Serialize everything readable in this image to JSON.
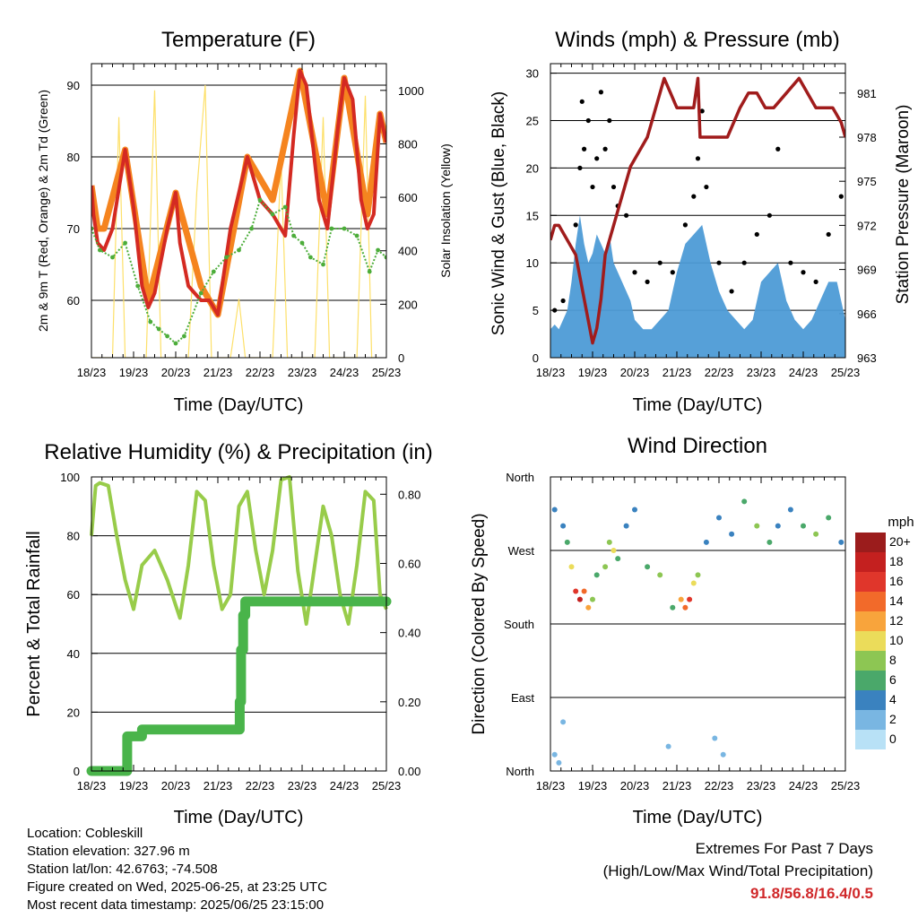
{
  "colors": {
    "temp_2m": "#d42a22",
    "temp_9m": "#f5841f",
    "dewpoint": "#4cad3a",
    "solar": "#fde06a",
    "gust": "#000000",
    "sonic_wind": "#4d9bd6",
    "pressure": "#a01c1c",
    "rh": "#98cc4a",
    "precip": "#49b44a",
    "extremes_text": "#d0282a"
  },
  "panels": {
    "temperature": {
      "title": "Temperature (F)",
      "ylabel_left": "2m & 9m T (Red, Orange) & 2m Td (Green)",
      "ylabel_right": "Solar Insolation (Yellow)",
      "xlabel": "Time (Day/UTC)"
    },
    "winds": {
      "title": "Winds (mph) & Pressure (mb)",
      "ylabel_left": "Sonic Wind & Gust (Blue, Black)",
      "ylabel_right": "Station Pressure (Maroon)",
      "xlabel": "Time (Day/UTC)"
    },
    "humidity": {
      "title": "Relative Humidity (%) & Precipitation (in)",
      "ylabel_left": "Percent & Total Rainfall",
      "xlabel": "Time (Day/UTC)"
    },
    "direction": {
      "title": "Wind Direction",
      "ylabel_left": "Direction (Colored By Speed)",
      "xlabel": "Time (Day/UTC)",
      "legend_title": "mph",
      "legend_labels": [
        "20+",
        "18",
        "16",
        "14",
        "12",
        "10",
        "8",
        "6",
        "4",
        "2",
        "0"
      ],
      "legend_colors": [
        "#9b1c1c",
        "#c4201f",
        "#e0362b",
        "#f26a2a",
        "#f8a43c",
        "#ebdc5a",
        "#8dc653",
        "#4aa86a",
        "#3a82bf",
        "#79b6e2",
        "#b8e1f6"
      ]
    }
  },
  "footer": {
    "location": "Location: Cobleskill",
    "elevation": "Station elevation: 327.96 m",
    "latlon": "Station lat/lon: 42.6763; -74.508",
    "created": "Figure created on Wed, 2025-06-25, at 23:25 UTC",
    "recent": "Most recent data timestamp: 2025/06/25 23:15:00",
    "extremes_title": "Extremes For Past 7 Days",
    "extremes_desc": "(High/Low/Max Wind/Total Precipitation)",
    "extremes_values": "91.8/56.8/16.4/0.5"
  },
  "chart_data": [
    {
      "type": "line",
      "title": "Temperature (F)",
      "xlabel": "Time (Day/UTC)",
      "ylabel": "2m & 9m T (Red, Orange) & 2m Td (Green)",
      "ylabel_right": "Solar Insolation (Yellow)",
      "x_ticks": [
        "18/23",
        "19/23",
        "20/23",
        "21/23",
        "22/23",
        "23/23",
        "24/23",
        "25/23"
      ],
      "xlim": [
        0,
        7
      ],
      "ylim": [
        52,
        93
      ],
      "y_ticks": [
        60,
        70,
        80,
        90
      ],
      "ylim_right": [
        0,
        1100
      ],
      "y_ticks_right": [
        0,
        200,
        400,
        600,
        800,
        1000
      ],
      "grid": "horizontal",
      "series": [
        {
          "name": "2m T",
          "axis": "left",
          "x": [
            0,
            0.05,
            0.15,
            0.3,
            0.5,
            0.8,
            1.0,
            1.2,
            1.35,
            1.5,
            1.8,
            2.0,
            2.1,
            2.3,
            2.6,
            2.8,
            3.0,
            3.3,
            3.7,
            4.0,
            4.3,
            4.6,
            4.8,
            4.95,
            5.1,
            5.4,
            5.6,
            5.85,
            6.0,
            6.2,
            6.4,
            6.55,
            6.7,
            6.85,
            7.0
          ],
          "y": [
            76,
            72,
            68,
            67,
            70,
            81,
            73,
            62,
            59,
            61,
            70,
            75,
            68,
            62,
            60,
            60,
            58,
            70,
            80,
            74,
            72,
            69,
            83,
            92,
            90,
            74,
            70,
            84,
            91,
            88,
            74,
            70,
            72,
            86,
            82
          ]
        },
        {
          "name": "9m T",
          "axis": "left",
          "x": [
            0,
            0.15,
            0.3,
            0.8,
            1.35,
            2.0,
            2.6,
            3.0,
            3.7,
            4.3,
            4.95,
            5.6,
            6.0,
            6.55,
            6.85,
            7.0
          ],
          "y": [
            76,
            70,
            70,
            81,
            60,
            75,
            62,
            58,
            80,
            74,
            92,
            72,
            91,
            72,
            86,
            82
          ]
        },
        {
          "name": "2m Td",
          "axis": "left",
          "x": [
            0,
            0.2,
            0.5,
            0.8,
            1.1,
            1.4,
            1.6,
            1.8,
            2.0,
            2.2,
            2.6,
            2.9,
            3.2,
            3.5,
            3.8,
            4.0,
            4.3,
            4.6,
            4.8,
            5.0,
            5.2,
            5.5,
            5.7,
            6.0,
            6.3,
            6.6,
            6.8,
            7.0
          ],
          "y": [
            70,
            67,
            66,
            68,
            62,
            57,
            56,
            55,
            54,
            55,
            61,
            64,
            66,
            67,
            70,
            74,
            72,
            73,
            69,
            68,
            66,
            65,
            70,
            70,
            69,
            64,
            67,
            66
          ]
        },
        {
          "name": "Solar",
          "axis": "right",
          "x": [
            0,
            0.5,
            0.65,
            0.8,
            1.0,
            1.3,
            1.5,
            1.65,
            1.85,
            2.3,
            2.5,
            2.7,
            2.85,
            3.0,
            3.3,
            3.5,
            3.65,
            3.8,
            4.3,
            4.5,
            4.65,
            4.8,
            5.3,
            5.5,
            5.65,
            5.8,
            6.3,
            6.5,
            6.65,
            6.8
          ],
          "y": [
            0,
            0,
            900,
            0,
            0,
            0,
            1000,
            0,
            0,
            0,
            620,
            1020,
            0,
            0,
            0,
            220,
            0,
            0,
            0,
            740,
            0,
            0,
            0,
            900,
            0,
            0,
            0,
            980,
            0,
            0
          ]
        }
      ]
    },
    {
      "type": "scatter",
      "title": "Winds (mph) & Pressure (mb)",
      "xlabel": "Time (Day/UTC)",
      "ylabel": "Sonic Wind & Gust (Blue, Black)",
      "ylabel_right": "Station Pressure (Maroon)",
      "x_ticks": [
        "18/23",
        "19/23",
        "20/23",
        "21/23",
        "22/23",
        "23/23",
        "24/23",
        "25/23"
      ],
      "xlim": [
        0,
        7
      ],
      "ylim": [
        0,
        31
      ],
      "y_ticks": [
        0,
        5,
        10,
        15,
        20,
        25,
        30
      ],
      "ylim_right": [
        963,
        983
      ],
      "y_ticks_right": [
        963,
        966,
        969,
        972,
        975,
        978,
        981
      ],
      "grid": "horizontal",
      "series": [
        {
          "name": "Sonic Wind",
          "type": "area",
          "x": [
            0,
            0.1,
            0.2,
            0.3,
            0.4,
            0.5,
            0.6,
            0.7,
            0.8,
            0.9,
            1.0,
            1.1,
            1.2,
            1.3,
            1.4,
            1.5,
            1.6,
            1.7,
            1.8,
            1.9,
            2.0,
            2.2,
            2.4,
            2.6,
            2.8,
            3.0,
            3.2,
            3.4,
            3.6,
            3.8,
            4.0,
            4.2,
            4.4,
            4.6,
            4.8,
            5.0,
            5.2,
            5.4,
            5.6,
            5.8,
            6.0,
            6.2,
            6.4,
            6.6,
            6.8,
            7.0
          ],
          "y": [
            3,
            3.5,
            3,
            4,
            5,
            8,
            12,
            15,
            12,
            10,
            11,
            13,
            12,
            11,
            13,
            10,
            9,
            8,
            7,
            6,
            4,
            3,
            3,
            4,
            5,
            9,
            12,
            13,
            14,
            10,
            7,
            5,
            4,
            3,
            4,
            8,
            9,
            10,
            6,
            4,
            3,
            4,
            6,
            8,
            8,
            4
          ]
        },
        {
          "name": "Gust",
          "type": "scatter",
          "x": [
            0.1,
            0.3,
            0.6,
            0.7,
            0.75,
            0.8,
            0.9,
            1.0,
            1.1,
            1.2,
            1.3,
            1.4,
            1.5,
            1.6,
            1.8,
            2.0,
            2.3,
            2.6,
            2.9,
            3.2,
            3.4,
            3.5,
            3.6,
            3.7,
            4.0,
            4.3,
            4.6,
            4.9,
            5.2,
            5.4,
            5.7,
            6.0,
            6.3,
            6.6,
            6.9
          ],
          "y": [
            5,
            6,
            14,
            20,
            27,
            22,
            25,
            18,
            21,
            28,
            22,
            25,
            18,
            16,
            15,
            9,
            8,
            10,
            9,
            14,
            17,
            21,
            26,
            18,
            10,
            7,
            10,
            13,
            15,
            22,
            10,
            9,
            8,
            13,
            17
          ]
        },
        {
          "name": "Station Pressure",
          "type": "line",
          "axis": "right",
          "x": [
            0,
            0.1,
            0.2,
            0.4,
            0.6,
            0.8,
            1.0,
            1.1,
            1.2,
            1.3,
            1.5,
            1.7,
            1.9,
            2.1,
            2.3,
            2.5,
            2.7,
            2.85,
            3.0,
            3.2,
            3.4,
            3.5,
            3.55,
            3.6,
            3.7,
            3.9,
            4.2,
            4.5,
            4.7,
            4.9,
            5.1,
            5.3,
            5.6,
            5.9,
            6.1,
            6.3,
            6.5,
            6.7,
            6.9,
            7.0
          ],
          "y": [
            971,
            972,
            972,
            971,
            970,
            967,
            964,
            965,
            967,
            970,
            972,
            974,
            976,
            977,
            978,
            980,
            982,
            981,
            980,
            980,
            980,
            982,
            978,
            978,
            978,
            978,
            978,
            980,
            981,
            981,
            980,
            980,
            981,
            982,
            981,
            980,
            980,
            980,
            979,
            978
          ]
        }
      ]
    },
    {
      "type": "line",
      "title": "Relative Humidity (%) & Precipitation (in)",
      "xlabel": "Time (Day/UTC)",
      "ylabel": "Percent & Total Rainfall",
      "x_ticks": [
        "18/23",
        "19/23",
        "20/23",
        "21/23",
        "22/23",
        "23/23",
        "24/23",
        "25/23"
      ],
      "xlim": [
        0,
        7
      ],
      "ylim": [
        0,
        100
      ],
      "y_ticks": [
        0,
        20,
        40,
        60,
        80,
        100
      ],
      "ylim_right": [
        0,
        0.85
      ],
      "y_ticks_right": [
        0.0,
        0.2,
        0.4,
        0.6,
        0.8
      ],
      "grid": "horizontal",
      "series": [
        {
          "name": "Relative Humidity",
          "axis": "left",
          "x": [
            0,
            0.1,
            0.2,
            0.4,
            0.6,
            0.8,
            1.0,
            1.2,
            1.5,
            1.8,
            2.1,
            2.3,
            2.5,
            2.7,
            2.9,
            3.1,
            3.3,
            3.5,
            3.7,
            3.9,
            4.1,
            4.3,
            4.5,
            4.7,
            4.9,
            5.1,
            5.3,
            5.5,
            5.7,
            5.9,
            6.1,
            6.3,
            6.5,
            6.7,
            6.85,
            7.0
          ],
          "y": [
            80,
            97,
            98,
            97,
            80,
            65,
            55,
            70,
            75,
            65,
            52,
            70,
            95,
            92,
            70,
            55,
            60,
            90,
            95,
            75,
            60,
            75,
            99,
            100,
            68,
            50,
            70,
            90,
            80,
            60,
            50,
            70,
            95,
            92,
            60,
            55
          ]
        },
        {
          "name": "Total Precipitation",
          "axis": "right",
          "x": [
            0,
            0.8,
            0.85,
            1.0,
            1.2,
            3.5,
            3.52,
            3.55,
            3.6,
            3.65,
            4.0,
            7.0
          ],
          "y": [
            0.0,
            0.0,
            0.1,
            0.1,
            0.12,
            0.12,
            0.2,
            0.35,
            0.45,
            0.49,
            0.49,
            0.49
          ]
        }
      ]
    },
    {
      "type": "scatter",
      "title": "Wind Direction",
      "xlabel": "Time (Day/UTC)",
      "ylabel": "Direction (Colored By Speed)",
      "x_ticks": [
        "18/23",
        "19/23",
        "20/23",
        "21/23",
        "22/23",
        "23/23",
        "24/23",
        "25/23"
      ],
      "xlim": [
        0,
        7
      ],
      "y_ticks": [
        "North",
        "East",
        "South",
        "West",
        "North"
      ],
      "ylim": [
        0,
        360
      ],
      "grid": "horizontal",
      "legend": "right",
      "colorbar_title": "mph",
      "colorbar_labels": [
        "20+",
        "18",
        "16",
        "14",
        "12",
        "10",
        "8",
        "6",
        "4",
        "2",
        "0"
      ],
      "points": {
        "x": [
          0.1,
          0.3,
          0.4,
          0.5,
          0.6,
          0.7,
          0.8,
          0.9,
          1.0,
          1.1,
          1.3,
          1.4,
          1.5,
          1.6,
          1.8,
          2.0,
          2.3,
          2.6,
          2.9,
          3.1,
          3.2,
          3.3,
          3.4,
          3.5,
          3.7,
          4.0,
          4.3,
          4.6,
          4.9,
          5.2,
          5.4,
          5.7,
          6.0,
          6.3,
          6.6,
          6.9,
          0.1,
          0.3,
          2.8,
          3.9,
          0.2,
          4.1
        ],
        "y": [
          320,
          300,
          280,
          250,
          220,
          210,
          220,
          200,
          210,
          240,
          250,
          280,
          270,
          260,
          300,
          320,
          250,
          240,
          200,
          210,
          200,
          210,
          230,
          240,
          280,
          310,
          290,
          330,
          300,
          280,
          300,
          320,
          300,
          290,
          310,
          280,
          20,
          60,
          30,
          40,
          10,
          20
        ],
        "speed": [
          3,
          4,
          6,
          10,
          16,
          18,
          14,
          12,
          8,
          6,
          8,
          7,
          9,
          6,
          4,
          3,
          6,
          8,
          5,
          12,
          14,
          16,
          10,
          8,
          4,
          3,
          4,
          6,
          7,
          5,
          4,
          3,
          5,
          8,
          6,
          4,
          2,
          1,
          2,
          2,
          1,
          1
        ]
      }
    }
  ]
}
